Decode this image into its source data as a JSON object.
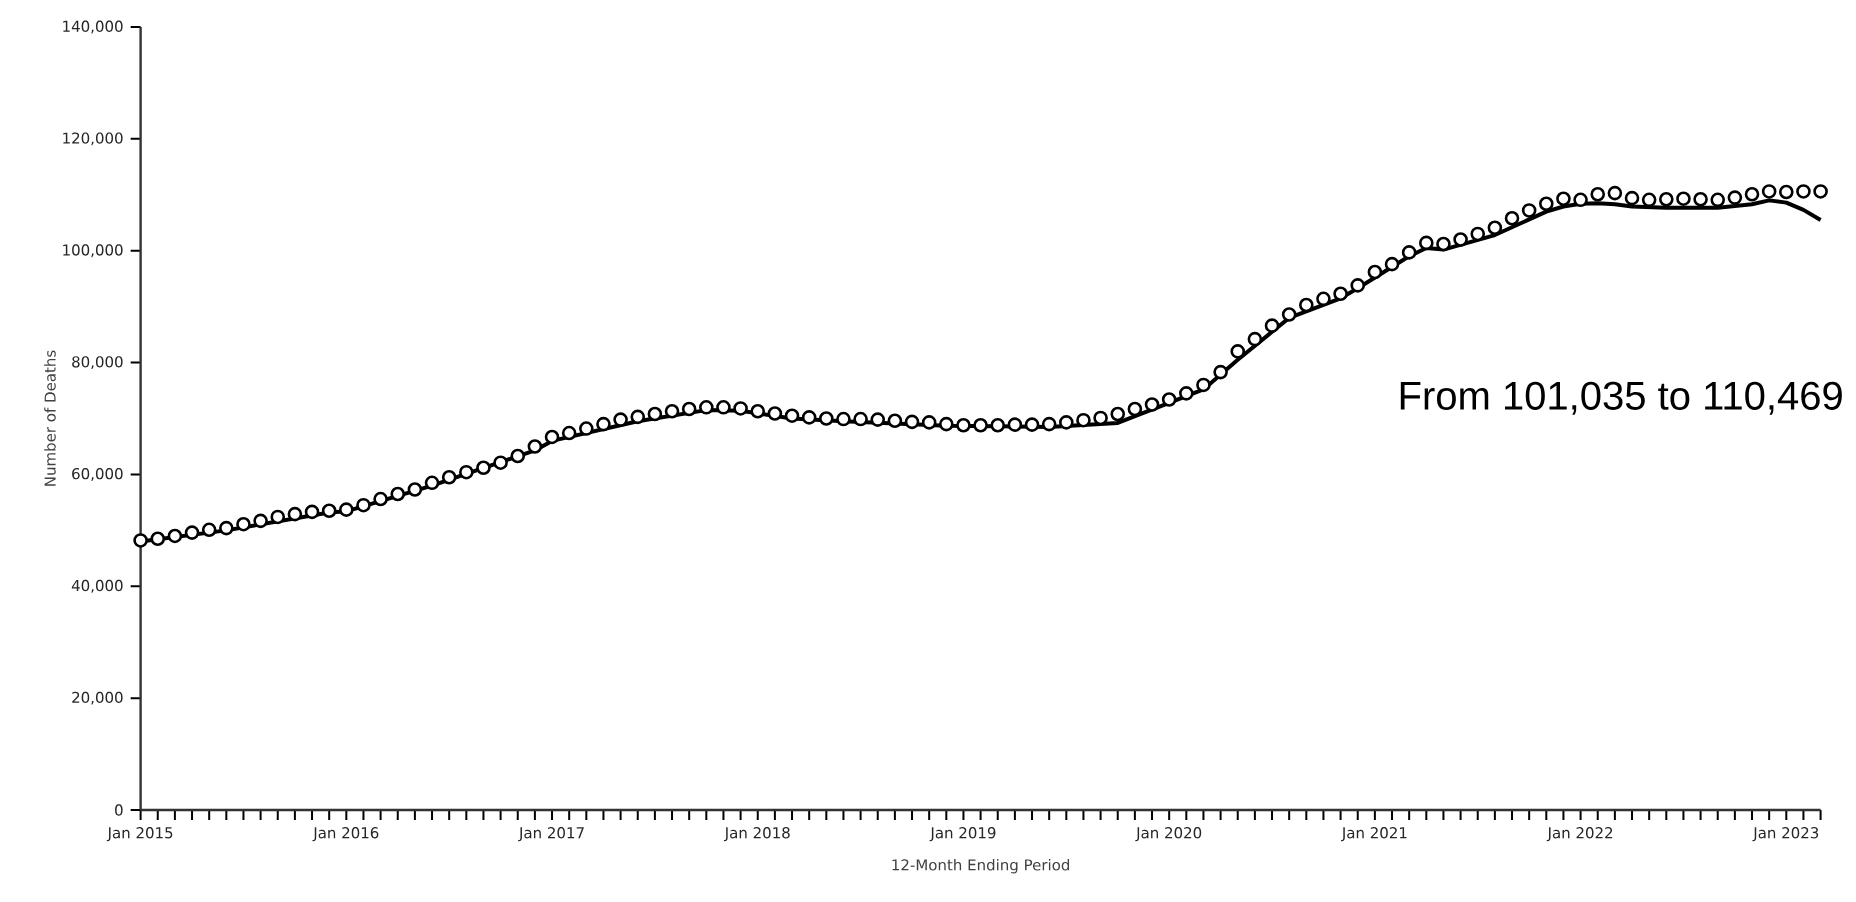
{
  "chart_data": {
    "type": "line",
    "xlabel": "12-Month Ending Period",
    "ylabel": "Number of Deaths",
    "annotations": [
      "From 101,035 to 110,469"
    ],
    "xlim": [
      "2015-01",
      "2023-03"
    ],
    "ylim": [
      0,
      140000
    ],
    "yticks": [
      {
        "value": 0,
        "label": "0"
      },
      {
        "value": 20000,
        "label": "20,000"
      },
      {
        "value": 40000,
        "label": "40,000"
      },
      {
        "value": 60000,
        "label": "60,000"
      },
      {
        "value": 80000,
        "label": "80,000"
      },
      {
        "value": 100000,
        "label": "100,000"
      },
      {
        "value": 120000,
        "label": "120,000"
      },
      {
        "value": 140000,
        "label": "140,000"
      }
    ],
    "xticks": [
      {
        "value": "2015-01",
        "label": "Jan 2015"
      },
      {
        "value": "2015-02",
        "label": null
      },
      {
        "value": "2015-03",
        "label": null
      },
      {
        "value": "2015-04",
        "label": null
      },
      {
        "value": "2015-05",
        "label": null
      },
      {
        "value": "2015-06",
        "label": null
      },
      {
        "value": "2015-07",
        "label": null
      },
      {
        "value": "2015-08",
        "label": null
      },
      {
        "value": "2015-09",
        "label": null
      },
      {
        "value": "2015-10",
        "label": null
      },
      {
        "value": "2015-11",
        "label": null
      },
      {
        "value": "2015-12",
        "label": null
      },
      {
        "value": "2016-01",
        "label": "Jan 2016"
      },
      {
        "value": "2016-02",
        "label": null
      },
      {
        "value": "2016-03",
        "label": null
      },
      {
        "value": "2016-04",
        "label": null
      },
      {
        "value": "2016-05",
        "label": null
      },
      {
        "value": "2016-06",
        "label": null
      },
      {
        "value": "2016-07",
        "label": null
      },
      {
        "value": "2016-08",
        "label": null
      },
      {
        "value": "2016-09",
        "label": null
      },
      {
        "value": "2016-10",
        "label": null
      },
      {
        "value": "2016-11",
        "label": null
      },
      {
        "value": "2016-12",
        "label": null
      },
      {
        "value": "2017-01",
        "label": "Jan 2017"
      },
      {
        "value": "2017-02",
        "label": null
      },
      {
        "value": "2017-03",
        "label": null
      },
      {
        "value": "2017-04",
        "label": null
      },
      {
        "value": "2017-05",
        "label": null
      },
      {
        "value": "2017-06",
        "label": null
      },
      {
        "value": "2017-07",
        "label": null
      },
      {
        "value": "2017-08",
        "label": null
      },
      {
        "value": "2017-09",
        "label": null
      },
      {
        "value": "2017-10",
        "label": null
      },
      {
        "value": "2017-11",
        "label": null
      },
      {
        "value": "2017-12",
        "label": null
      },
      {
        "value": "2018-01",
        "label": "Jan 2018"
      },
      {
        "value": "2018-02",
        "label": null
      },
      {
        "value": "2018-03",
        "label": null
      },
      {
        "value": "2018-04",
        "label": null
      },
      {
        "value": "2018-05",
        "label": null
      },
      {
        "value": "2018-06",
        "label": null
      },
      {
        "value": "2018-07",
        "label": null
      },
      {
        "value": "2018-08",
        "label": null
      },
      {
        "value": "2018-09",
        "label": null
      },
      {
        "value": "2018-10",
        "label": null
      },
      {
        "value": "2018-11",
        "label": null
      },
      {
        "value": "2018-12",
        "label": null
      },
      {
        "value": "2019-01",
        "label": "Jan 2019"
      },
      {
        "value": "2019-02",
        "label": null
      },
      {
        "value": "2019-03",
        "label": null
      },
      {
        "value": "2019-04",
        "label": null
      },
      {
        "value": "2019-05",
        "label": null
      },
      {
        "value": "2019-06",
        "label": null
      },
      {
        "value": "2019-07",
        "label": null
      },
      {
        "value": "2019-08",
        "label": null
      },
      {
        "value": "2019-09",
        "label": null
      },
      {
        "value": "2019-10",
        "label": null
      },
      {
        "value": "2019-11",
        "label": null
      },
      {
        "value": "2019-12",
        "label": null
      },
      {
        "value": "2020-01",
        "label": "Jan 2020"
      },
      {
        "value": "2020-02",
        "label": null
      },
      {
        "value": "2020-03",
        "label": null
      },
      {
        "value": "2020-04",
        "label": null
      },
      {
        "value": "2020-05",
        "label": null
      },
      {
        "value": "2020-06",
        "label": null
      },
      {
        "value": "2020-07",
        "label": null
      },
      {
        "value": "2020-08",
        "label": null
      },
      {
        "value": "2020-09",
        "label": null
      },
      {
        "value": "2020-10",
        "label": null
      },
      {
        "value": "2020-11",
        "label": null
      },
      {
        "value": "2020-12",
        "label": null
      },
      {
        "value": "2021-01",
        "label": "Jan 2021"
      },
      {
        "value": "2021-02",
        "label": null
      },
      {
        "value": "2021-03",
        "label": null
      },
      {
        "value": "2021-04",
        "label": null
      },
      {
        "value": "2021-05",
        "label": null
      },
      {
        "value": "2021-06",
        "label": null
      },
      {
        "value": "2021-07",
        "label": null
      },
      {
        "value": "2021-08",
        "label": null
      },
      {
        "value": "2021-09",
        "label": null
      },
      {
        "value": "2021-10",
        "label": null
      },
      {
        "value": "2021-11",
        "label": null
      },
      {
        "value": "2021-12",
        "label": null
      },
      {
        "value": "2022-01",
        "label": "Jan 2022"
      },
      {
        "value": "2022-02",
        "label": null
      },
      {
        "value": "2022-03",
        "label": null
      },
      {
        "value": "2022-04",
        "label": null
      },
      {
        "value": "2022-05",
        "label": null
      },
      {
        "value": "2022-06",
        "label": null
      },
      {
        "value": "2022-07",
        "label": null
      },
      {
        "value": "2022-08",
        "label": null
      },
      {
        "value": "2022-09",
        "label": null
      },
      {
        "value": "2022-10",
        "label": null
      },
      {
        "value": "2022-11",
        "label": null
      },
      {
        "value": "2022-12",
        "label": null
      },
      {
        "value": "2023-01",
        "label": "Jan 2023"
      },
      {
        "value": "2023-02",
        "label": null
      },
      {
        "value": "2023-03",
        "label": null
      }
    ],
    "grid": false,
    "series": [
      {
        "color": "#000000",
        "marker": "none",
        "line_style": "solid",
        "x": [
          "2015-01",
          "2015-06",
          "2015-12",
          "2016-01",
          "2016-06",
          "2016-12",
          "2017-01",
          "2017-06",
          "2017-10",
          "2017-12",
          "2018-03",
          "2018-06",
          "2018-12",
          "2019-06",
          "2019-10",
          "2020-01",
          "2020-03",
          "2020-05",
          "2020-08",
          "2020-11",
          "2020-12",
          "2021-03",
          "2021-04",
          "2021-05",
          "2021-08",
          "2021-11",
          "2021-12",
          "2022-01",
          "2022-02",
          "2022-03",
          "2022-04",
          "2022-06",
          "2022-09",
          "2022-11",
          "2022-12",
          "2023-01",
          "2023-02",
          "2023-03"
        ],
        "values": [
          48000,
          50000,
          53200,
          53400,
          58000,
          64300,
          66000,
          69500,
          71500,
          71400,
          70000,
          69500,
          68700,
          68500,
          69200,
          72800,
          75200,
          80500,
          88000,
          91500,
          93300,
          99000,
          100500,
          100200,
          102800,
          107000,
          107900,
          108400,
          108500,
          108300,
          107900,
          107700,
          107700,
          108300,
          109000,
          108600,
          107300,
          105500
        ]
      },
      {
        "type": "scatter",
        "color": "#000000",
        "marker": "circle",
        "x": [
          "2015-01",
          "2015-02",
          "2015-03",
          "2015-04",
          "2015-05",
          "2015-06",
          "2015-07",
          "2015-08",
          "2015-09",
          "2015-10",
          "2015-11",
          "2015-12",
          "2016-01",
          "2016-02",
          "2016-03",
          "2016-04",
          "2016-05",
          "2016-06",
          "2016-07",
          "2016-08",
          "2016-09",
          "2016-10",
          "2016-11",
          "2016-12",
          "2017-01",
          "2017-02",
          "2017-03",
          "2017-04",
          "2017-05",
          "2017-06",
          "2017-07",
          "2017-08",
          "2017-09",
          "2017-10",
          "2017-11",
          "2017-12",
          "2018-01",
          "2018-02",
          "2018-03",
          "2018-04",
          "2018-05",
          "2018-06",
          "2018-07",
          "2018-08",
          "2018-09",
          "2018-10",
          "2018-11",
          "2018-12",
          "2019-01",
          "2019-02",
          "2019-03",
          "2019-04",
          "2019-05",
          "2019-06",
          "2019-07",
          "2019-08",
          "2019-09",
          "2019-10",
          "2019-11",
          "2019-12",
          "2020-01",
          "2020-02",
          "2020-03",
          "2020-04",
          "2020-05",
          "2020-06",
          "2020-07",
          "2020-08",
          "2020-09",
          "2020-10",
          "2020-11",
          "2020-12",
          "2021-01",
          "2021-02",
          "2021-03",
          "2021-04",
          "2021-05",
          "2021-06",
          "2021-07",
          "2021-08",
          "2021-09",
          "2021-10",
          "2021-11",
          "2021-12",
          "2022-01",
          "2022-02",
          "2022-03",
          "2022-04",
          "2022-05",
          "2022-06",
          "2022-07",
          "2022-08",
          "2022-09",
          "2022-10",
          "2022-11",
          "2022-12",
          "2023-01",
          "2023-02",
          "2023-03"
        ],
        "values": [
          48200,
          48500,
          49000,
          49600,
          50100,
          50400,
          51100,
          51700,
          52400,
          52900,
          53300,
          53500,
          53700,
          54500,
          55600,
          56500,
          57300,
          58500,
          59500,
          60400,
          61200,
          62100,
          63300,
          65000,
          66700,
          67400,
          68200,
          69000,
          69800,
          70300,
          70800,
          71300,
          71700,
          72000,
          72000,
          71800,
          71300,
          70900,
          70500,
          70200,
          70000,
          69900,
          69900,
          69800,
          69600,
          69400,
          69300,
          69000,
          68800,
          68800,
          68800,
          68900,
          68900,
          69000,
          69300,
          69700,
          70100,
          70800,
          71700,
          72500,
          73400,
          74500,
          76000,
          78300,
          82000,
          84200,
          86600,
          88600,
          90300,
          91400,
          92300,
          93800,
          96200,
          97600,
          99700,
          101400,
          101200,
          102000,
          103000,
          104100,
          105800,
          107200,
          108400,
          109300,
          109100,
          110100,
          110300,
          109400,
          109100,
          109200,
          109300,
          109200,
          109100,
          109500,
          110100,
          110600,
          110500,
          110600,
          110600
        ]
      }
    ]
  }
}
